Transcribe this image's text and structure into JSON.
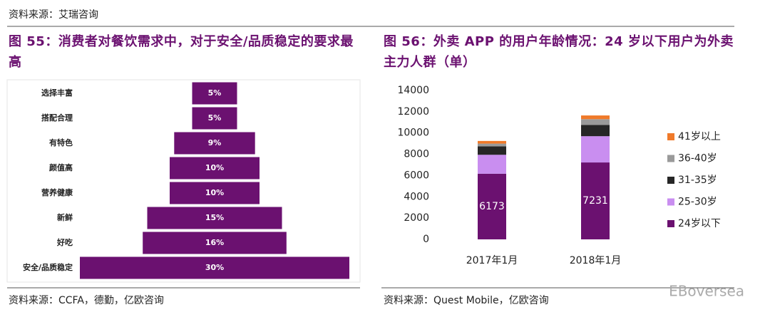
{
  "header": "资料来源：艾瑞咨询",
  "watermark": "EBoversea",
  "chart_data": [
    {
      "type": "funnel",
      "title": "图 55：消费者对餐饮需求中，对于安全/品质稳定的要求最高",
      "source": "资料来源：CCFA，德勤，亿欧咨询",
      "categories": [
        "选择丰富",
        "搭配合理",
        "有特色",
        "颜值高",
        "营养健康",
        "新鲜",
        "好吃",
        "安全/品质稳定"
      ],
      "values": [
        5,
        5,
        9,
        10,
        10,
        15,
        16,
        30
      ],
      "value_labels": [
        "5%",
        "5%",
        "9%",
        "10%",
        "10%",
        "15%",
        "16%",
        "30%"
      ],
      "color": "#6b1170"
    },
    {
      "type": "stacked_bar",
      "title": "图 56：外卖 APP 的用户年龄情况：24 岁以下用户为外卖主力人群（单）",
      "source": "资料来源：Quest Mobile，亿欧咨询",
      "categories": [
        "2017年1月",
        "2018年1月"
      ],
      "series": [
        {
          "name": "24岁以下",
          "color": "#6b1170",
          "values": [
            6173,
            7231
          ]
        },
        {
          "name": "25-30岁",
          "color": "#c98ef0",
          "values": [
            1780,
            2470
          ]
        },
        {
          "name": "31-35岁",
          "color": "#262626",
          "values": [
            800,
            1050
          ]
        },
        {
          "name": "36-40岁",
          "color": "#9a9a9a",
          "values": [
            250,
            550
          ]
        },
        {
          "name": "41岁以上",
          "color": "#f07a2a",
          "values": [
            250,
            350
          ]
        }
      ],
      "ylim": [
        0,
        14000
      ],
      "yticks": [
        0,
        2000,
        4000,
        6000,
        8000,
        10000,
        12000,
        14000
      ],
      "grid": false,
      "legend": "right"
    }
  ]
}
